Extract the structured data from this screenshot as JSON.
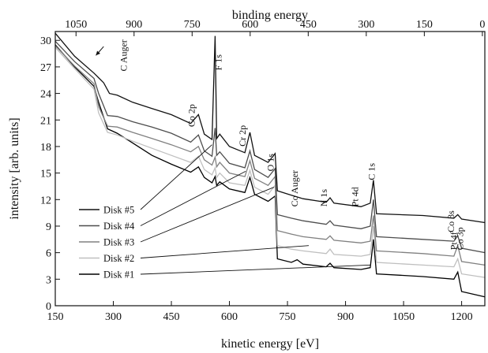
{
  "chart_data": {
    "type": "line",
    "xlabel": "kinetic energy [eV]",
    "ylabel": "intensity [arb. units]",
    "x2label": "binding energy",
    "xlim": [
      150,
      1260
    ],
    "ylim": [
      0,
      31
    ],
    "xticks": [
      150,
      300,
      450,
      600,
      750,
      900,
      1050,
      1200
    ],
    "yticks": [
      0,
      3,
      6,
      9,
      12,
      15,
      18,
      21,
      24,
      27,
      30
    ],
    "x2ticks": [
      1050,
      900,
      750,
      600,
      450,
      300,
      150,
      0
    ],
    "x2_kinetic_offset": 1253.6,
    "grid": false,
    "legend_position": "bottom-left",
    "series": [
      {
        "name": "Disk #5",
        "color": "#111111",
        "values": [
          [
            150,
            30.8
          ],
          [
            200,
            28.2
          ],
          [
            250,
            26.3
          ],
          [
            275,
            25.2
          ],
          [
            290,
            24.0
          ],
          [
            310,
            23.8
          ],
          [
            350,
            23.0
          ],
          [
            400,
            22.3
          ],
          [
            450,
            21.6
          ],
          [
            500,
            20.6
          ],
          [
            520,
            21.6
          ],
          [
            535,
            19.4
          ],
          [
            555,
            18.8
          ],
          [
            563,
            30.5
          ],
          [
            567,
            18.9
          ],
          [
            575,
            19.4
          ],
          [
            600,
            18.0
          ],
          [
            640,
            17.3
          ],
          [
            653,
            19.6
          ],
          [
            665,
            17.0
          ],
          [
            700,
            16.2
          ],
          [
            718,
            17.2
          ],
          [
            724,
            13.0
          ],
          [
            760,
            12.5
          ],
          [
            790,
            12.1
          ],
          [
            850,
            11.7
          ],
          [
            860,
            12.2
          ],
          [
            870,
            11.6
          ],
          [
            940,
            11.2
          ],
          [
            964,
            11.6
          ],
          [
            972,
            14.2
          ],
          [
            980,
            10.4
          ],
          [
            1100,
            10.2
          ],
          [
            1180,
            9.9
          ],
          [
            1190,
            10.3
          ],
          [
            1200,
            9.8
          ],
          [
            1260,
            9.4
          ]
        ]
      },
      {
        "name": "Disk #4",
        "color": "#4d4d4d",
        "values": [
          [
            150,
            29.9
          ],
          [
            200,
            27.6
          ],
          [
            250,
            25.7
          ],
          [
            262,
            24.0
          ],
          [
            285,
            21.5
          ],
          [
            310,
            21.4
          ],
          [
            350,
            20.8
          ],
          [
            400,
            20.2
          ],
          [
            450,
            19.5
          ],
          [
            500,
            18.5
          ],
          [
            520,
            19.3
          ],
          [
            535,
            17.5
          ],
          [
            555,
            16.9
          ],
          [
            563,
            20.1
          ],
          [
            567,
            17.0
          ],
          [
            575,
            17.4
          ],
          [
            600,
            16.1
          ],
          [
            640,
            15.6
          ],
          [
            653,
            17.5
          ],
          [
            665,
            15.4
          ],
          [
            700,
            14.5
          ],
          [
            718,
            15.5
          ],
          [
            724,
            10.3
          ],
          [
            760,
            9.9
          ],
          [
            790,
            9.6
          ],
          [
            850,
            9.2
          ],
          [
            860,
            9.6
          ],
          [
            870,
            9.1
          ],
          [
            940,
            8.7
          ],
          [
            964,
            9.0
          ],
          [
            972,
            12.0
          ],
          [
            980,
            7.8
          ],
          [
            1100,
            7.5
          ],
          [
            1180,
            7.3
          ],
          [
            1190,
            7.9
          ],
          [
            1200,
            6.5
          ],
          [
            1260,
            6.0
          ]
        ]
      },
      {
        "name": "Disk #3",
        "color": "#808080",
        "values": [
          [
            150,
            29.4
          ],
          [
            200,
            27.1
          ],
          [
            250,
            25.1
          ],
          [
            262,
            22.5
          ],
          [
            285,
            20.3
          ],
          [
            310,
            20.2
          ],
          [
            350,
            19.6
          ],
          [
            400,
            18.9
          ],
          [
            450,
            18.2
          ],
          [
            500,
            17.4
          ],
          [
            520,
            18.0
          ],
          [
            535,
            16.5
          ],
          [
            555,
            15.9
          ],
          [
            563,
            16.8
          ],
          [
            567,
            15.7
          ],
          [
            575,
            16.2
          ],
          [
            600,
            15.0
          ],
          [
            640,
            14.6
          ],
          [
            653,
            16.4
          ],
          [
            665,
            14.4
          ],
          [
            700,
            13.6
          ],
          [
            718,
            14.6
          ],
          [
            724,
            8.5
          ],
          [
            760,
            8.1
          ],
          [
            790,
            7.8
          ],
          [
            850,
            7.5
          ],
          [
            860,
            7.9
          ],
          [
            870,
            7.4
          ],
          [
            940,
            7.1
          ],
          [
            964,
            7.3
          ],
          [
            972,
            10.2
          ],
          [
            980,
            6.2
          ],
          [
            1100,
            5.9
          ],
          [
            1180,
            5.6
          ],
          [
            1190,
            6.8
          ],
          [
            1200,
            5.0
          ],
          [
            1260,
            4.6
          ]
        ]
      },
      {
        "name": "Disk #2",
        "color": "#bfbfbf",
        "values": [
          [
            150,
            29.2
          ],
          [
            200,
            26.8
          ],
          [
            250,
            24.5
          ],
          [
            262,
            21.8
          ],
          [
            285,
            19.6
          ],
          [
            310,
            19.3
          ],
          [
            350,
            18.6
          ],
          [
            400,
            17.8
          ],
          [
            450,
            17.0
          ],
          [
            500,
            16.2
          ],
          [
            520,
            16.9
          ],
          [
            535,
            15.4
          ],
          [
            555,
            14.8
          ],
          [
            563,
            15.6
          ],
          [
            567,
            14.5
          ],
          [
            575,
            15.0
          ],
          [
            600,
            13.9
          ],
          [
            640,
            13.6
          ],
          [
            653,
            15.3
          ],
          [
            665,
            13.4
          ],
          [
            700,
            12.6
          ],
          [
            718,
            13.6
          ],
          [
            724,
            6.8
          ],
          [
            760,
            6.4
          ],
          [
            790,
            6.2
          ],
          [
            850,
            5.9
          ],
          [
            860,
            6.4
          ],
          [
            870,
            5.8
          ],
          [
            940,
            5.6
          ],
          [
            964,
            5.8
          ],
          [
            972,
            9.0
          ],
          [
            980,
            4.9
          ],
          [
            1100,
            4.6
          ],
          [
            1180,
            4.4
          ],
          [
            1190,
            5.3
          ],
          [
            1200,
            3.6
          ],
          [
            1260,
            3.2
          ]
        ]
      },
      {
        "name": "Disk #1",
        "color": "#000000",
        "values": [
          [
            150,
            29.5
          ],
          [
            200,
            27.0
          ],
          [
            250,
            24.8
          ],
          [
            262,
            23.0
          ],
          [
            285,
            20.0
          ],
          [
            310,
            19.5
          ],
          [
            350,
            18.4
          ],
          [
            400,
            17.0
          ],
          [
            450,
            16.0
          ],
          [
            500,
            15.1
          ],
          [
            520,
            15.7
          ],
          [
            535,
            14.5
          ],
          [
            555,
            13.9
          ],
          [
            563,
            14.6
          ],
          [
            567,
            13.6
          ],
          [
            575,
            14.0
          ],
          [
            600,
            13.2
          ],
          [
            640,
            12.8
          ],
          [
            653,
            14.5
          ],
          [
            665,
            12.6
          ],
          [
            700,
            11.8
          ],
          [
            718,
            12.4
          ],
          [
            724,
            5.3
          ],
          [
            760,
            4.9
          ],
          [
            775,
            5.2
          ],
          [
            790,
            4.7
          ],
          [
            850,
            4.4
          ],
          [
            860,
            4.8
          ],
          [
            870,
            4.3
          ],
          [
            940,
            4.1
          ],
          [
            964,
            4.3
          ],
          [
            972,
            7.5
          ],
          [
            980,
            3.6
          ],
          [
            1100,
            3.3
          ],
          [
            1180,
            3.0
          ],
          [
            1190,
            3.8
          ],
          [
            1200,
            1.6
          ],
          [
            1260,
            1.0
          ]
        ]
      }
    ],
    "annotations": [
      {
        "text": "C Auger",
        "x": 335,
        "y": 26.5,
        "arrow": {
          "from": [
            275,
            29.3
          ],
          "to": [
            255,
            28.3
          ]
        }
      },
      {
        "text": "F 1s",
        "x": 580,
        "y": 26.6
      },
      {
        "text": "Co 2p",
        "x": 510,
        "y": 20.2
      },
      {
        "text": "Cr 2p",
        "x": 642,
        "y": 18.0
      },
      {
        "text": "O 1s",
        "x": 714,
        "y": 15.2
      },
      {
        "text": "Co Auger",
        "x": 776,
        "y": 11.2
      },
      {
        "text": "N 1s",
        "x": 852,
        "y": 11.2
      },
      {
        "text": "Pt 4d",
        "x": 932,
        "y": 11.2
      },
      {
        "text": "C 1s",
        "x": 975,
        "y": 14.2
      },
      {
        "text": "Co 3s",
        "x": 1180,
        "y": 8.3
      },
      {
        "text": "Pt 4f",
        "x": 1188,
        "y": 6.3
      },
      {
        "text": "Co 3p",
        "x": 1204,
        "y": 6.3
      }
    ],
    "legend_leaders": [
      {
        "name": "Disk #5",
        "to": [
          555,
          18.2
        ]
      },
      {
        "name": "Disk #4",
        "to": [
          642,
          15.2
        ]
      },
      {
        "name": "Disk #3",
        "to": [
          715,
          13.4
        ]
      },
      {
        "name": "Disk #2",
        "to": [
          805,
          6.8
        ]
      },
      {
        "name": "Disk #1",
        "to": [
          965,
          4.6
        ]
      }
    ]
  }
}
